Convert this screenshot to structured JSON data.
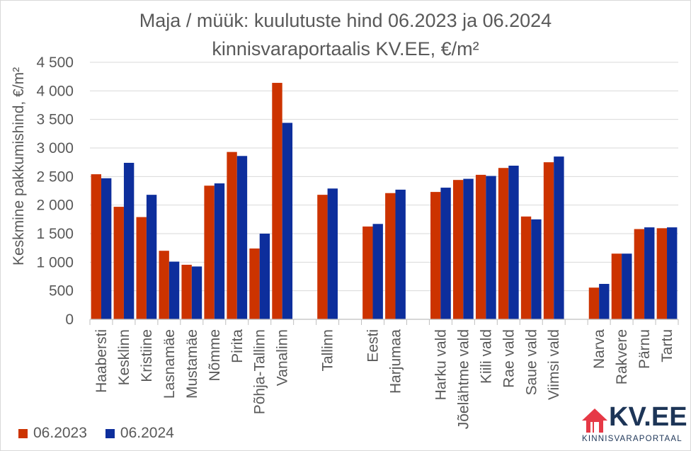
{
  "chart_data": {
    "type": "bar",
    "title_line1": "Maja / müük: kuulutuste hind 06.2023 ja 06.2024",
    "title_line2": "kinnisvaraportaalis KV.EE, €/m²",
    "ylabel": "Keskmine pakkumishind, €/m²",
    "ylim": [
      0,
      4500
    ],
    "yticks": [
      0,
      500,
      1000,
      1500,
      2000,
      2500,
      3000,
      3500,
      4000,
      4500
    ],
    "ytick_labels": [
      "0",
      "500",
      "1 000",
      "1 500",
      "2 000",
      "2 500",
      "3 000",
      "3 500",
      "4 000",
      "4 500"
    ],
    "grid": true,
    "legend_position": "bottom-left",
    "categories": [
      "Haabersti",
      "Kesklinn",
      "Kristiine",
      "Lasnamäe",
      "Mustamäe",
      "Nõmme",
      "Pirita",
      "Põhja-Tallinn",
      "Vanalinn",
      "",
      "Tallinn",
      "",
      "Eesti",
      "Harjumaa",
      "",
      "Harku vald",
      "Jõelähtme vald",
      "Kiili vald",
      "Rae vald",
      "Saue vald",
      "Viimsi vald",
      "",
      "Narva",
      "Rakvere",
      "Pärnu",
      "Tartu"
    ],
    "series": [
      {
        "name": "06.2023",
        "color": "#cc3300",
        "values": [
          2540,
          1970,
          1790,
          1200,
          955,
          2340,
          2930,
          1240,
          4140,
          null,
          2180,
          null,
          1625,
          2210,
          null,
          2230,
          2440,
          2530,
          2650,
          1800,
          2750,
          null,
          555,
          1150,
          1580,
          1595
        ]
      },
      {
        "name": "06.2024",
        "color": "#0d2e9c",
        "values": [
          2470,
          2740,
          2180,
          1010,
          925,
          2380,
          2860,
          1500,
          3440,
          null,
          2290,
          null,
          1670,
          2270,
          null,
          2305,
          2460,
          2510,
          2690,
          1750,
          2850,
          null,
          620,
          1150,
          1610,
          1610
        ]
      }
    ]
  },
  "logo": {
    "text": "KV.EE",
    "subtext": "KINNISVARAPORTAAL",
    "color": "#1d3557",
    "accent": "#e63946",
    "icon": "house-icon"
  }
}
